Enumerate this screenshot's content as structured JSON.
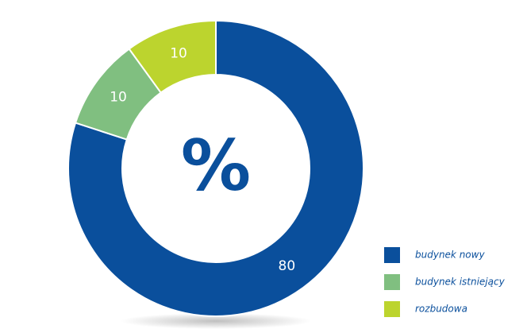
{
  "chart_data": {
    "type": "donut",
    "center_label": "%",
    "categories": [
      "budynek nowy",
      "budynek istniejący",
      "rozbudowa"
    ],
    "values": [
      80,
      10,
      10
    ],
    "colors": [
      "#0a4f9c",
      "#80bf80",
      "#bcd42e"
    ],
    "legend": "bottom-right"
  }
}
